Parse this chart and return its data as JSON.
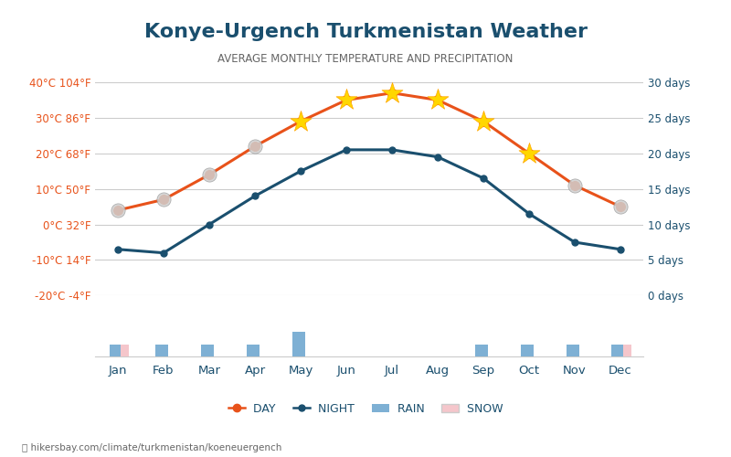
{
  "title": "Konye-Urgench Turkmenistan Weather",
  "subtitle": "AVERAGE MONTHLY TEMPERATURE AND PRECIPITATION",
  "months": [
    "Jan",
    "Feb",
    "Mar",
    "Apr",
    "May",
    "Jun",
    "Jul",
    "Aug",
    "Sep",
    "Oct",
    "Nov",
    "Dec"
  ],
  "day_temps": [
    4,
    7,
    14,
    22,
    29,
    35,
    37,
    35,
    29,
    20,
    11,
    5
  ],
  "night_temps": [
    -7,
    -8,
    0,
    8,
    15,
    21,
    21,
    19,
    13,
    3,
    -5,
    -7
  ],
  "rain_days": [
    1,
    1,
    1,
    1,
    2,
    0,
    0,
    0,
    1,
    1,
    1,
    1
  ],
  "snow_days": [
    1,
    0,
    0,
    0,
    0,
    0,
    0,
    0,
    0,
    0,
    0,
    1
  ],
  "temp_ylim": [
    -20,
    40
  ],
  "temp_yticks": [
    -20,
    -10,
    0,
    10,
    20,
    30,
    40
  ],
  "temp_ytick_labels_left": [
    "-20°C -4°F",
    "-10°C 14°F",
    "0°C 32°F",
    "10°C 50°F",
    "20°C 68°F",
    "30°C 86°F",
    "40°C 104°F"
  ],
  "precip_ylim": [
    0,
    30
  ],
  "precip_yticks": [
    0,
    5,
    10,
    15,
    20,
    25,
    30
  ],
  "precip_ytick_labels": [
    "0 days",
    "5 days",
    "10 days",
    "15 days",
    "20 days",
    "25 days",
    "30 days"
  ],
  "day_color": "#e8521a",
  "night_color": "#1a4f6e",
  "rain_color": "#7eb0d4",
  "snow_color": "#f5c6cb",
  "title_color": "#1a4f6e",
  "subtitle_color": "#555555",
  "axis_label_color": "#1a4f6e",
  "tick_color_left": "#e8521a",
  "tick_color_right": "#1a4f6e",
  "grid_color": "#cccccc",
  "background_color": "#ffffff",
  "url_text": "hikersbay.com/climate/turkmenistan/koeneuergench",
  "bar_width": 0.3,
  "footer_text": "hikersbay.com/climate/turkmenistan/koeneuergench"
}
